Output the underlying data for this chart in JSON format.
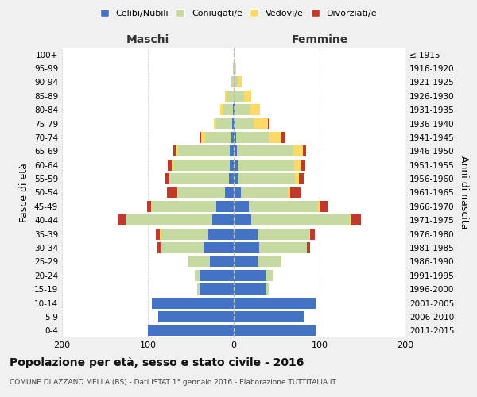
{
  "age_groups": [
    "0-4",
    "5-9",
    "10-14",
    "15-19",
    "20-24",
    "25-29",
    "30-34",
    "35-39",
    "40-44",
    "45-49",
    "50-54",
    "55-59",
    "60-64",
    "65-69",
    "70-74",
    "75-79",
    "80-84",
    "85-89",
    "90-94",
    "95-99",
    "100+"
  ],
  "birth_years": [
    "2011-2015",
    "2006-2010",
    "2001-2005",
    "1996-2000",
    "1991-1995",
    "1986-1990",
    "1981-1985",
    "1976-1980",
    "1971-1975",
    "1966-1970",
    "1961-1965",
    "1956-1960",
    "1951-1955",
    "1946-1950",
    "1941-1945",
    "1936-1940",
    "1931-1935",
    "1926-1930",
    "1921-1925",
    "1916-1920",
    "≤ 1915"
  ],
  "male": {
    "celibe": [
      100,
      88,
      95,
      40,
      40,
      28,
      35,
      30,
      25,
      20,
      10,
      6,
      5,
      5,
      3,
      2,
      1,
      0,
      0,
      0,
      0
    ],
    "coniugato": [
      0,
      0,
      0,
      3,
      5,
      25,
      50,
      55,
      100,
      75,
      55,
      68,
      65,
      60,
      30,
      18,
      12,
      8,
      3,
      1,
      0
    ],
    "vedovo": [
      0,
      0,
      0,
      0,
      0,
      0,
      0,
      1,
      1,
      1,
      1,
      2,
      2,
      3,
      5,
      3,
      3,
      2,
      1,
      0,
      0
    ],
    "divorziato": [
      0,
      0,
      0,
      0,
      0,
      0,
      4,
      5,
      8,
      5,
      12,
      4,
      5,
      2,
      1,
      0,
      0,
      0,
      0,
      0,
      0
    ]
  },
  "female": {
    "nubile": [
      95,
      82,
      95,
      38,
      38,
      28,
      30,
      28,
      20,
      18,
      8,
      6,
      5,
      4,
      3,
      2,
      1,
      0,
      0,
      0,
      0
    ],
    "coniugata": [
      0,
      0,
      0,
      3,
      8,
      28,
      55,
      60,
      115,
      80,
      55,
      65,
      65,
      65,
      38,
      22,
      18,
      12,
      5,
      2,
      0
    ],
    "vedova": [
      0,
      0,
      0,
      0,
      0,
      0,
      0,
      1,
      1,
      2,
      3,
      5,
      8,
      12,
      15,
      16,
      12,
      8,
      4,
      1,
      0
    ],
    "divorziata": [
      0,
      0,
      0,
      0,
      0,
      0,
      4,
      5,
      12,
      10,
      12,
      6,
      5,
      3,
      3,
      1,
      0,
      0,
      0,
      0,
      0
    ]
  },
  "colors": {
    "celibe": "#4472c4",
    "coniugato": "#c5d9a0",
    "vedovo": "#ffd966",
    "divorziato": "#c0392b"
  },
  "xlim": [
    -200,
    200
  ],
  "xticks": [
    -200,
    -100,
    0,
    100,
    200
  ],
  "xticklabels": [
    "200",
    "100",
    "0",
    "100",
    "200"
  ],
  "title": "Popolazione per età, sesso e stato civile - 2016",
  "subtitle": "COMUNE DI AZZANO MELLA (BS) - Dati ISTAT 1° gennaio 2016 - Elaborazione TUTTITALIA.IT",
  "ylabel_left": "Fasce di età",
  "ylabel_right": "Anni di nascita",
  "label_maschi": "Maschi",
  "label_femmine": "Femmine",
  "legend_labels": [
    "Celibi/Nubili",
    "Coniugati/e",
    "Vedovi/e",
    "Divorziati/e"
  ],
  "bg_color": "#f0f0f0",
  "plot_bg": "#ffffff"
}
